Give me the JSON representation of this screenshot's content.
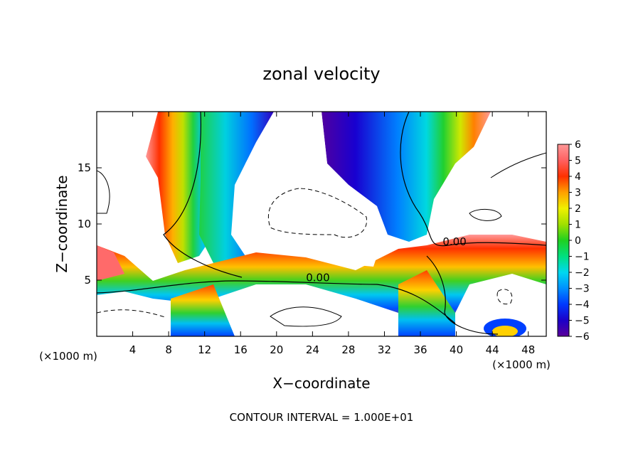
{
  "chart_data": {
    "type": "heatmap",
    "title": "zonal velocity",
    "xlabel": "X−coordinate",
    "ylabel": "Z−coordinate",
    "x_unit_left": "(×1000 m)",
    "x_unit_right": "(×1000 m)",
    "xlim": [
      0,
      50
    ],
    "ylim": [
      0,
      20
    ],
    "xticks": [
      4,
      8,
      12,
      16,
      20,
      24,
      28,
      32,
      36,
      40,
      44,
      48
    ],
    "xtick_labels": [
      "4",
      "8",
      "12",
      "16",
      "20",
      "24",
      "28",
      "32",
      "36",
      "40",
      "44",
      "48"
    ],
    "yticks": [
      5,
      10,
      15
    ],
    "ytick_labels": [
      "5",
      "10",
      "15"
    ],
    "colorbar": {
      "min": -6,
      "max": 6,
      "ticks": [
        6,
        5,
        4,
        3,
        2,
        1,
        0,
        -1,
        -2,
        -3,
        -4,
        -5,
        -6
      ],
      "tick_labels": [
        "6",
        "5",
        "4",
        "3",
        "2",
        "1",
        "0",
        "−1",
        "−2",
        "−3",
        "−4",
        "−5",
        "−6"
      ]
    },
    "contour_labels": [
      {
        "text": "0.00",
        "x": 24.6,
        "y": 4.9
      },
      {
        "text": "0.00",
        "x": 39.8,
        "y": 8.1
      }
    ],
    "footer": "CONTOUR INTERVAL = 1.000E+01",
    "grid": false
  }
}
